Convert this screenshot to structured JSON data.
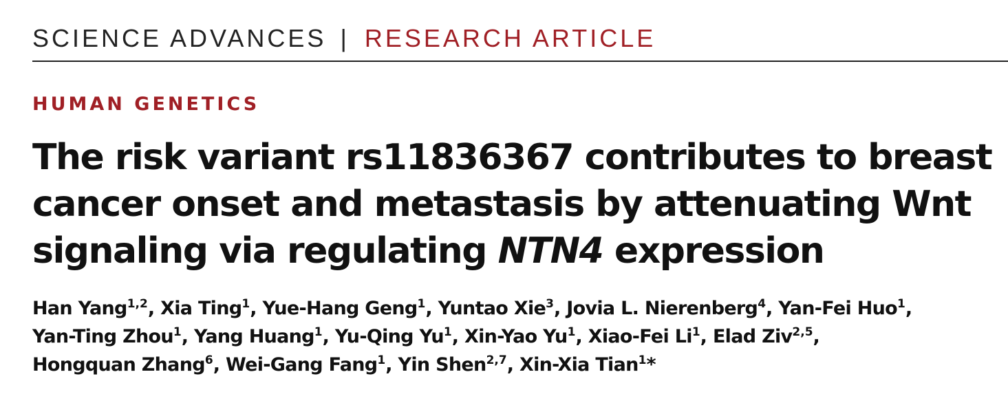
{
  "masthead": {
    "journal": "SCIENCE ADVANCES",
    "divider": "|",
    "article_type": "RESEARCH ARTICLE"
  },
  "section": "HUMAN GENETICS",
  "title": {
    "line1": "The risk variant rs11836367 contributes to breast",
    "line2": "cancer onset and metastasis by attenuating Wnt",
    "line3_pre": "signaling via regulating ",
    "line3_gene": "NTN4",
    "line3_post": " expression"
  },
  "authors": [
    {
      "name": "Han Yang",
      "aff": "1,2"
    },
    {
      "name": "Xia Ting",
      "aff": "1"
    },
    {
      "name": "Yue-Hang Geng",
      "aff": "1"
    },
    {
      "name": "Yuntao Xie",
      "aff": "3"
    },
    {
      "name": "Jovia L. Nierenberg",
      "aff": "4"
    },
    {
      "name": "Yan-Fei Huo",
      "aff": "1"
    },
    {
      "name": "Yan-Ting Zhou",
      "aff": "1"
    },
    {
      "name": "Yang Huang",
      "aff": "1"
    },
    {
      "name": "Yu-Qing Yu",
      "aff": "1"
    },
    {
      "name": "Xin-Yao Yu",
      "aff": "1"
    },
    {
      "name": "Xiao-Fei Li",
      "aff": "1"
    },
    {
      "name": "Elad Ziv",
      "aff": "2,5"
    },
    {
      "name": "Hongquan Zhang",
      "aff": "6"
    },
    {
      "name": "Wei-Gang Fang",
      "aff": "1"
    },
    {
      "name": "Yin Shen",
      "aff": "2,7"
    },
    {
      "name": "Xin-Xia Tian",
      "aff": "1"
    }
  ],
  "corresponding_mark": "*",
  "colors": {
    "accent": "#a01f25",
    "text": "#111111"
  }
}
